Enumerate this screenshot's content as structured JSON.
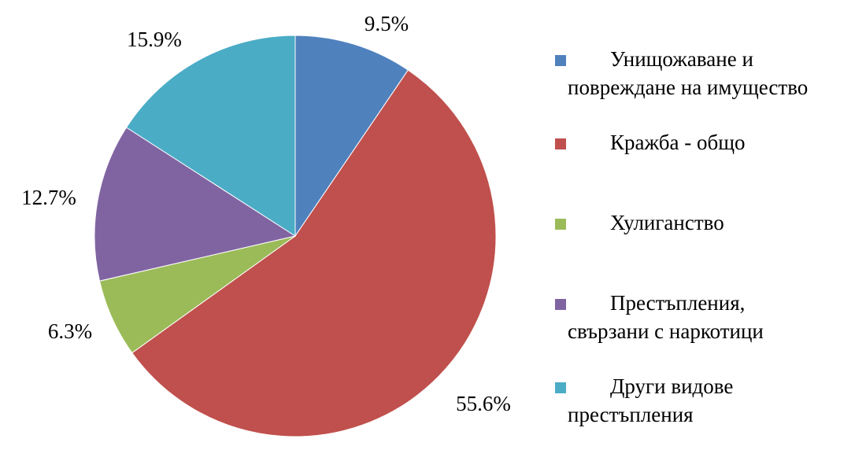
{
  "chart_data": {
    "type": "pie",
    "start_angle_deg": 0,
    "direction": "clockwise",
    "legend_position": "right",
    "slices": [
      {
        "name": "Унищожаване и повреждане на имущество",
        "legend_lines": [
          "Унищожаване и",
          "повреждане на имущество"
        ],
        "value": 9.5,
        "label": "9.5%",
        "color": "#4f81bd"
      },
      {
        "name": "Кражба - общо",
        "legend_lines": [
          "Кражба - общо"
        ],
        "value": 55.6,
        "label": "55.6%",
        "color": "#c0504d"
      },
      {
        "name": "Хулиганство",
        "legend_lines": [
          "Хулиганство"
        ],
        "value": 6.3,
        "label": "6.3%",
        "color": "#9bbb59"
      },
      {
        "name": "Престъпления, свързани с наркотици",
        "legend_lines": [
          "Престъпления,",
          "свързани с наркотици"
        ],
        "value": 12.7,
        "label": "12.7%",
        "color": "#8064a2"
      },
      {
        "name": "Други видове престъпления",
        "legend_lines": [
          "Други видове",
          "престъпления"
        ],
        "value": 15.9,
        "label": "15.9%",
        "color": "#4bacc6"
      }
    ]
  }
}
